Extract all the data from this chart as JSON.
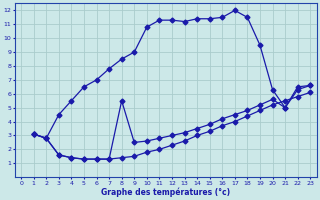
{
  "title": "Graphe des températures (°c)",
  "bg_color": "#cce8e8",
  "grid_color": "#aacccc",
  "line_color": "#1a1aaa",
  "xlim": [
    -0.5,
    23.5
  ],
  "ylim": [
    0,
    12.5
  ],
  "xticks": [
    0,
    1,
    2,
    3,
    4,
    5,
    6,
    7,
    8,
    9,
    10,
    11,
    12,
    13,
    14,
    15,
    16,
    17,
    18,
    19,
    20,
    21,
    22,
    23
  ],
  "yticks": [
    1,
    2,
    3,
    4,
    5,
    6,
    7,
    8,
    9,
    10,
    11,
    12
  ],
  "curve1_x": [
    1,
    2,
    3,
    4,
    5,
    6,
    7,
    8,
    9,
    10,
    11,
    12,
    13,
    14,
    15,
    16,
    17,
    18,
    19,
    20,
    21,
    22,
    23
  ],
  "curve1_y": [
    3.1,
    2.8,
    4.5,
    5.5,
    6.5,
    7.0,
    7.8,
    8.5,
    9.0,
    10.8,
    11.3,
    11.3,
    11.2,
    11.4,
    11.4,
    11.5,
    12.0,
    11.5,
    9.5,
    6.3,
    5.0,
    6.5,
    6.6
  ],
  "curve2_x": [
    1,
    2,
    3,
    4,
    5,
    6,
    7,
    8,
    9,
    10,
    11,
    12,
    13,
    14,
    15,
    16,
    17,
    18,
    19,
    20,
    21,
    22,
    23
  ],
  "curve2_y": [
    3.1,
    2.8,
    1.6,
    1.4,
    1.3,
    1.3,
    1.3,
    5.5,
    2.5,
    2.6,
    2.8,
    3.0,
    3.2,
    3.5,
    3.8,
    4.2,
    4.5,
    4.8,
    5.2,
    5.6,
    5.0,
    6.3,
    6.6
  ],
  "curve3_x": [
    1,
    2,
    3,
    4,
    5,
    6,
    7,
    8,
    9,
    10,
    11,
    12,
    13,
    14,
    15,
    16,
    17,
    18,
    19,
    20,
    21,
    22,
    23
  ],
  "curve3_y": [
    3.1,
    2.8,
    1.6,
    1.4,
    1.3,
    1.3,
    1.3,
    1.4,
    1.5,
    1.8,
    2.0,
    2.3,
    2.6,
    3.0,
    3.3,
    3.7,
    4.0,
    4.4,
    4.8,
    5.2,
    5.5,
    5.8,
    6.1
  ],
  "marker": "D",
  "marker_size": 2.5,
  "lw": 0.9
}
